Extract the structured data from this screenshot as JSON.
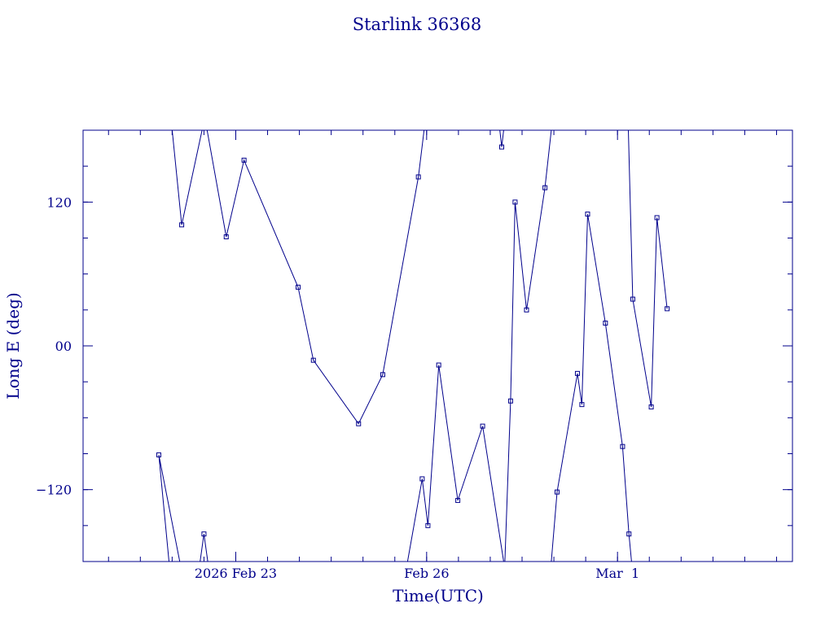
{
  "colors": {
    "ink": "#00008b",
    "background": "#ffffff"
  },
  "chart_data": {
    "type": "line",
    "title": "Starlink 36368",
    "xlabel": "Time(UTC)",
    "ylabel": "Long E (deg)",
    "x_unit": "days",
    "x_ticks": [
      {
        "x": 23.0,
        "label": "2026 Feb 23"
      },
      {
        "x": 26.0,
        "label": "Feb 26"
      },
      {
        "x": 29.0,
        "label": "Mar  1"
      }
    ],
    "y_ticks": [
      {
        "y": 120,
        "label": "120"
      },
      {
        "y": 0,
        "label": "00"
      },
      {
        "y": -120,
        "label": "−120"
      }
    ],
    "xlim": [
      20.6,
      31.75
    ],
    "ylim": [
      -180,
      180
    ],
    "grid": false,
    "legend": "none",
    "series": [
      {
        "points": [
          {
            "x": 22.0,
            "y": 180,
            "marker": false
          },
          {
            "x": 22.15,
            "y": 101
          },
          {
            "x": 22.47,
            "y": 180,
            "marker": false
          },
          {
            "x": 22.55,
            "y": 180,
            "marker": false
          },
          {
            "x": 22.85,
            "y": 91
          },
          {
            "x": 23.13,
            "y": 155
          },
          {
            "x": 23.98,
            "y": 49
          },
          {
            "x": 24.22,
            "y": -12
          },
          {
            "x": 24.93,
            "y": -65
          },
          {
            "x": 25.31,
            "y": -24
          },
          {
            "x": 25.87,
            "y": 141
          },
          {
            "x": 25.96,
            "y": 180,
            "marker": false
          }
        ]
      },
      {
        "points": [
          {
            "x": 21.95,
            "y": -180,
            "marker": false
          },
          {
            "x": 21.79,
            "y": -91
          },
          {
            "x": 22.12,
            "y": -180,
            "marker": false
          }
        ]
      },
      {
        "points": [
          {
            "x": 22.44,
            "y": -180,
            "marker": false
          },
          {
            "x": 22.5,
            "y": -157
          },
          {
            "x": 22.56,
            "y": -180,
            "marker": false
          }
        ]
      },
      {
        "points": [
          {
            "x": 25.7,
            "y": -180,
            "marker": false
          },
          {
            "x": 25.93,
            "y": -111
          },
          {
            "x": 26.02,
            "y": -150
          },
          {
            "x": 26.19,
            "y": -16
          },
          {
            "x": 26.49,
            "y": -129
          },
          {
            "x": 26.88,
            "y": -67
          },
          {
            "x": 27.21,
            "y": -180,
            "marker": false
          }
        ]
      },
      {
        "points": [
          {
            "x": 27.15,
            "y": 180,
            "marker": false
          },
          {
            "x": 27.18,
            "y": 166
          },
          {
            "x": 27.21,
            "y": 180,
            "marker": false
          }
        ]
      },
      {
        "points": [
          {
            "x": 27.23,
            "y": -180,
            "marker": false
          },
          {
            "x": 27.32,
            "y": -46
          },
          {
            "x": 27.39,
            "y": 120
          },
          {
            "x": 27.57,
            "y": 30
          },
          {
            "x": 27.86,
            "y": 132
          },
          {
            "x": 27.96,
            "y": 180,
            "marker": false
          }
        ]
      },
      {
        "points": [
          {
            "x": 27.96,
            "y": -180,
            "marker": false
          },
          {
            "x": 28.05,
            "y": -122
          },
          {
            "x": 28.37,
            "y": -23
          },
          {
            "x": 28.44,
            "y": -49
          },
          {
            "x": 28.53,
            "y": 110
          },
          {
            "x": 28.81,
            "y": 19
          },
          {
            "x": 29.08,
            "y": -84
          },
          {
            "x": 29.18,
            "y": -157
          },
          {
            "x": 29.22,
            "y": -180,
            "marker": false
          }
        ]
      },
      {
        "points": [
          {
            "x": 29.17,
            "y": 180,
            "marker": false
          },
          {
            "x": 29.24,
            "y": 39
          },
          {
            "x": 29.53,
            "y": -51
          },
          {
            "x": 29.62,
            "y": 107
          },
          {
            "x": 29.78,
            "y": 31
          }
        ]
      }
    ]
  }
}
